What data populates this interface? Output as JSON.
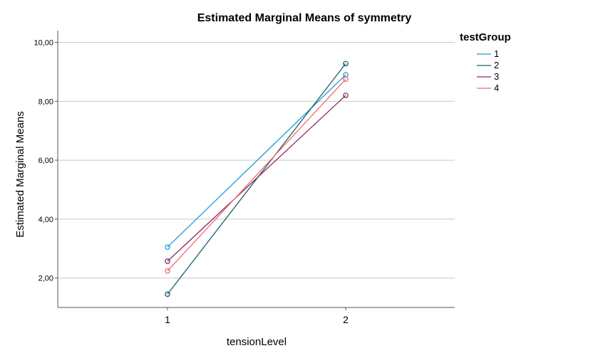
{
  "chart_data": {
    "type": "line",
    "title": "Estimated Marginal Means of symmetry",
    "xlabel": "tensionLevel",
    "ylabel": "Estimated Marginal Means",
    "categories": [
      "1",
      "2"
    ],
    "ylim": [
      1.0,
      10.4
    ],
    "yticks": [
      2.0,
      4.0,
      6.0,
      8.0,
      10.0
    ],
    "ytick_labels": [
      "2,00",
      "4,00",
      "6,00",
      "8,00",
      "10,00"
    ],
    "grid": true,
    "legend": {
      "title": "testGroup",
      "placement": "right"
    },
    "series": [
      {
        "name": "1",
        "color": "#1f9bd1",
        "values": [
          3.05,
          8.9
        ]
      },
      {
        "name": "2",
        "color": "#1a5f6e",
        "values": [
          1.45,
          9.28
        ]
      },
      {
        "name": "3",
        "color": "#8a2a5f",
        "values": [
          2.57,
          8.2
        ]
      },
      {
        "name": "4",
        "color": "#f06a6f",
        "values": [
          2.24,
          8.75
        ]
      }
    ]
  }
}
